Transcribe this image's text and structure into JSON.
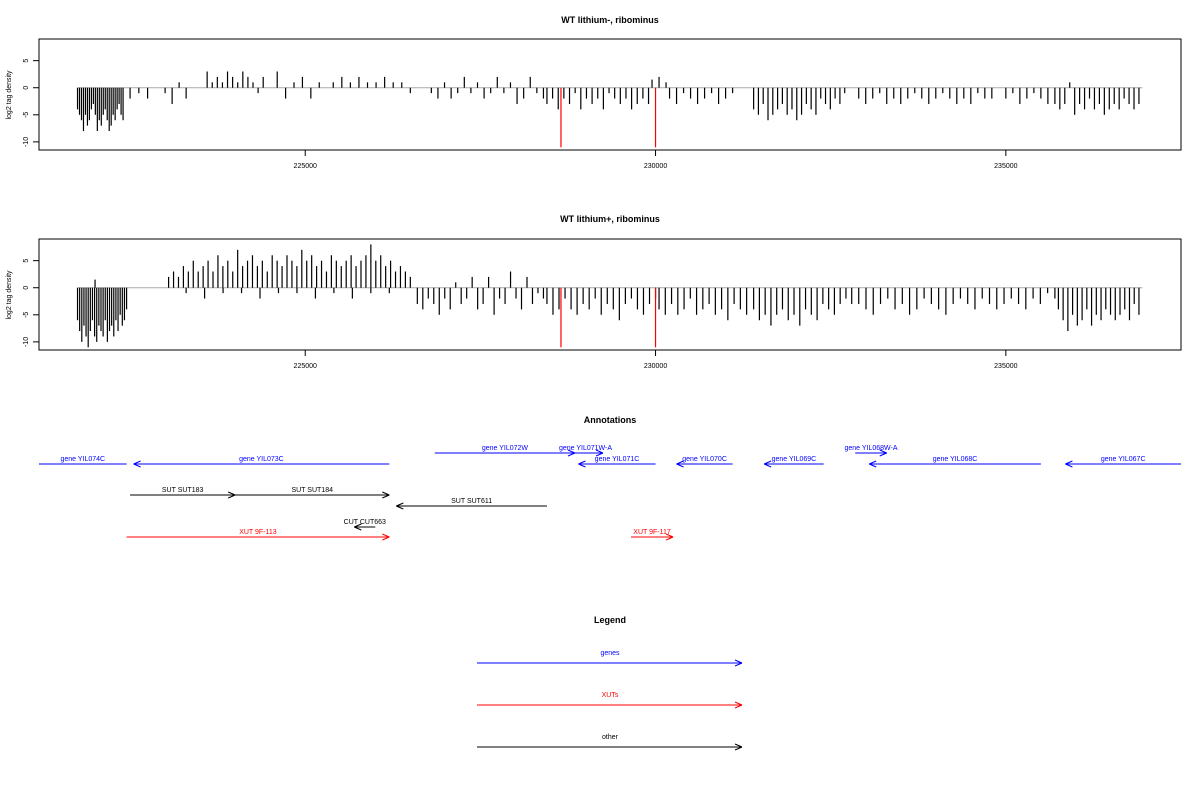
{
  "chart_data": [
    {
      "type": "bar",
      "title": "WT lithium-, ribominus",
      "ylabel": "log2 tag density",
      "xlim": [
        221200,
        237500
      ],
      "ylim": [
        -11.5,
        9
      ],
      "xticks": [
        225000,
        230000,
        235000
      ],
      "yticks": [
        -10,
        -5,
        0,
        5
      ],
      "series": [
        {
          "color": "#000000",
          "segments": [
            {
              "x0": 221750,
              "x1": 222400,
              "values": [
                -4,
                -5,
                -6,
                -8,
                -5,
                -7,
                -6,
                -4,
                -3,
                -5,
                -8,
                -6,
                -7,
                -5,
                -4,
                -6,
                -8,
                -7,
                -5,
                -6,
                -4,
                -3,
                -5,
                -6
              ]
            },
            {
              "x0": 222500,
              "x1": 222750,
              "values": [
                -2,
                -1,
                -2
              ]
            },
            {
              "x0": 223000,
              "x1": 223300,
              "values": [
                -1,
                -3,
                1,
                -2
              ]
            },
            {
              "x0": 223600,
              "x1": 224400,
              "values": [
                3,
                1,
                2,
                1,
                3,
                2,
                1,
                3,
                2,
                1,
                -1,
                2
              ]
            },
            {
              "x0": 224600,
              "x1": 225200,
              "values": [
                3,
                -2,
                1,
                2,
                -2,
                1
              ]
            },
            {
              "x0": 225400,
              "x1": 226500,
              "values": [
                1,
                2,
                1,
                2,
                1,
                1,
                2,
                1,
                1,
                -1
              ]
            },
            {
              "x0": 226800,
              "x1": 228400,
              "values": [
                -1,
                -2,
                1,
                -2,
                -1,
                2,
                -1,
                1,
                -2,
                -1,
                2,
                -1,
                1,
                -3,
                -2,
                2,
                -1,
                -2
              ]
            },
            {
              "x0": 228450,
              "x1": 229900,
              "values": [
                -3,
                -2,
                -4,
                -2,
                -3,
                -1,
                -4,
                -2,
                -3,
                -2,
                -4,
                -1,
                -2,
                -3,
                -2,
                -4,
                -3,
                -2,
                -3
              ]
            },
            {
              "x0": 229950,
              "x1": 230150,
              "values": [
                1.5,
                2,
                1
              ]
            },
            {
              "x0": 230200,
              "x1": 231100,
              "values": [
                -2,
                -3,
                -1,
                -2,
                -3,
                -2,
                -1,
                -3,
                -2,
                -1
              ]
            },
            {
              "x0": 231400,
              "x1": 232700,
              "values": [
                -4,
                -5,
                -3,
                -6,
                -5,
                -4,
                -3,
                -5,
                -4,
                -6,
                -5,
                -3,
                -4,
                -5,
                -2,
                -3,
                -4,
                -2,
                -3,
                -1
              ]
            },
            {
              "x0": 232900,
              "x1": 234800,
              "values": [
                -2,
                -3,
                -2,
                -1,
                -3,
                -2,
                -3,
                -2,
                -1,
                -2,
                -3,
                -2,
                -1,
                -2,
                -3,
                -2,
                -3,
                -1,
                -2,
                -2
              ]
            },
            {
              "x0": 235000,
              "x1": 235600,
              "values": [
                -2,
                -1,
                -3,
                -2,
                -1,
                -2,
                -3
              ]
            },
            {
              "x0": 235700,
              "x1": 236900,
              "values": [
                -3,
                -4,
                -3,
                1,
                -5,
                -3,
                -4,
                -2,
                -4,
                -3,
                -5,
                -4,
                -3,
                -4,
                -2,
                -3,
                -4,
                -3
              ]
            }
          ]
        },
        {
          "color": "#ff0000",
          "spikes": [
            {
              "x": 228650,
              "y": -11
            },
            {
              "x": 230000,
              "y": -11
            }
          ]
        }
      ]
    },
    {
      "type": "bar",
      "title": "WT lithium+, ribominus",
      "ylabel": "log2 tag density",
      "xlim": [
        221200,
        237500
      ],
      "ylim": [
        -11.5,
        9
      ],
      "xticks": [
        225000,
        230000,
        235000
      ],
      "yticks": [
        -10,
        -5,
        0,
        5
      ],
      "series": [
        {
          "color": "#000000",
          "segments": [
            {
              "x0": 221750,
              "x1": 222450,
              "values": [
                -6,
                -8,
                -10,
                -7,
                -9,
                -11,
                -8,
                -6,
                -9,
                -10,
                -7,
                -8,
                -9,
                -6,
                -10,
                -8,
                -7,
                -9,
                -6,
                -8,
                -5,
                -7,
                -6,
                -4
              ]
            },
            {
              "x0": 221950,
              "x1": 222050,
              "values": [
                1.5
              ]
            },
            {
              "x0": 223050,
              "x1": 226500,
              "values": [
                2,
                3,
                2,
                4,
                3,
                5,
                3,
                4,
                5,
                3,
                6,
                4,
                5,
                3,
                7,
                4,
                5,
                6,
                4,
                5,
                3,
                6,
                5,
                4,
                6,
                5,
                4,
                7,
                5,
                6,
                4,
                5,
                3,
                6,
                5,
                4,
                5,
                6,
                4,
                5,
                6,
                8,
                5,
                6,
                4,
                5,
                3,
                4,
                3,
                2
              ]
            },
            {
              "x0": 223300,
              "x1": 226200,
              "values": [
                -1,
                -2,
                -1,
                -1,
                -2,
                -1,
                -1,
                -2,
                -1,
                -2,
                -1,
                -1
              ]
            },
            {
              "x0": 226600,
              "x1": 228400,
              "values": [
                -3,
                -4,
                -2,
                -3,
                -5,
                -2,
                -4,
                1,
                -3,
                -2,
                2,
                -4,
                -3,
                2,
                -5,
                -2,
                -3,
                3,
                -2,
                -4,
                2,
                -3,
                -1,
                -2
              ]
            },
            {
              "x0": 228450,
              "x1": 230000,
              "values": [
                -3,
                -5,
                -4,
                -2,
                -4,
                -5,
                -3,
                -4,
                -2,
                -5,
                -3,
                -4,
                -6,
                -3,
                -2,
                -4,
                -5,
                -3,
                -2
              ]
            },
            {
              "x0": 230050,
              "x1": 231300,
              "values": [
                -4,
                -5,
                -3,
                -5,
                -4,
                -2,
                -5,
                -4,
                -3,
                -5,
                -4,
                -6,
                -3,
                -4,
                -5
              ]
            },
            {
              "x0": 231400,
              "x1": 232800,
              "values": [
                -4,
                -6,
                -5,
                -7,
                -5,
                -4,
                -6,
                -5,
                -7,
                -4,
                -5,
                -6,
                -3,
                -4,
                -5,
                -3,
                -2,
                -3
              ]
            },
            {
              "x0": 232900,
              "x1": 235700,
              "values": [
                -3,
                -4,
                -5,
                -3,
                -2,
                -4,
                -3,
                -5,
                -4,
                -2,
                -3,
                -4,
                -5,
                -3,
                -2,
                -3,
                -4,
                -2,
                -3,
                -4,
                -3,
                -2,
                -3,
                -4,
                -2,
                -3,
                -1,
                -2
              ]
            },
            {
              "x0": 235750,
              "x1": 236900,
              "values": [
                -4,
                -6,
                -8,
                -5,
                -7,
                -6,
                -4,
                -7,
                -5,
                -6,
                -4,
                -5,
                -6,
                -5,
                -4,
                -6,
                -3,
                -5
              ]
            }
          ]
        },
        {
          "color": "#ff0000",
          "spikes": [
            {
              "x": 228650,
              "y": -11
            },
            {
              "x": 230000,
              "y": -11
            }
          ]
        }
      ]
    }
  ],
  "annotations": {
    "title": "Annotations",
    "items": [
      {
        "label": "gene YIL074C",
        "start": 221200,
        "end": 222450,
        "row": 0,
        "strand": "+",
        "color": "#0000ff",
        "arrow": false
      },
      {
        "label": "gene YIL073C",
        "start": 222550,
        "end": 226200,
        "row": 0,
        "strand": "-",
        "color": "#0000ff",
        "arrow": true
      },
      {
        "label": "gene YIL072W",
        "start": 226850,
        "end": 228850,
        "row": -1,
        "strand": "+",
        "color": "#0000ff",
        "arrow": true
      },
      {
        "label": "gene YIL071W-A",
        "start": 228750,
        "end": 229250,
        "row": -1,
        "strand": "+",
        "color": "#0000ff",
        "arrow": true
      },
      {
        "label": "gene YIL071C",
        "start": 228900,
        "end": 230000,
        "row": 0,
        "strand": "-",
        "color": "#0000ff",
        "arrow": true
      },
      {
        "label": "gene YIL070C",
        "start": 230300,
        "end": 231100,
        "row": 0,
        "strand": "-",
        "color": "#0000ff",
        "arrow": true
      },
      {
        "label": "gene YIL069C",
        "start": 231550,
        "end": 232400,
        "row": 0,
        "strand": "-",
        "color": "#0000ff",
        "arrow": true
      },
      {
        "label": "gene YIL068W-A",
        "start": 232850,
        "end": 233300,
        "row": -1,
        "strand": "+",
        "color": "#0000ff",
        "arrow": true
      },
      {
        "label": "gene YIL068C",
        "start": 233050,
        "end": 235500,
        "row": 0,
        "strand": "-",
        "color": "#0000ff",
        "arrow": true
      },
      {
        "label": "gene YIL067C",
        "start": 235850,
        "end": 237500,
        "row": 0,
        "strand": "-",
        "color": "#0000ff",
        "arrow": true
      },
      {
        "label": "SUT SUT183",
        "start": 222500,
        "end": 224000,
        "row": 1,
        "strand": "+",
        "color": "#000000",
        "arrow": true
      },
      {
        "label": "SUT SUT184",
        "start": 224000,
        "end": 226200,
        "row": 1,
        "strand": "+",
        "color": "#000000",
        "arrow": true
      },
      {
        "label": "SUT SUT611",
        "start": 226300,
        "end": 228450,
        "row": 2,
        "strand": "-",
        "color": "#000000",
        "arrow": true
      },
      {
        "label": "CUT CUT663",
        "start": 225700,
        "end": 226000,
        "row": 3,
        "strand": "-",
        "color": "#000000",
        "arrow": true
      },
      {
        "label": "XUT 9F-113",
        "start": 222450,
        "end": 226200,
        "row": 4,
        "strand": "+",
        "color": "#ff0000",
        "arrow": true
      },
      {
        "label": "XUT 9F-117",
        "start": 229650,
        "end": 230250,
        "row": 4,
        "strand": "+",
        "color": "#ff0000",
        "arrow": true
      }
    ]
  },
  "legend": {
    "title": "Legend",
    "items": [
      {
        "label": "genes",
        "color": "#0000ff"
      },
      {
        "label": "XUTs",
        "color": "#ff0000"
      },
      {
        "label": "other",
        "color": "#000000"
      }
    ]
  }
}
